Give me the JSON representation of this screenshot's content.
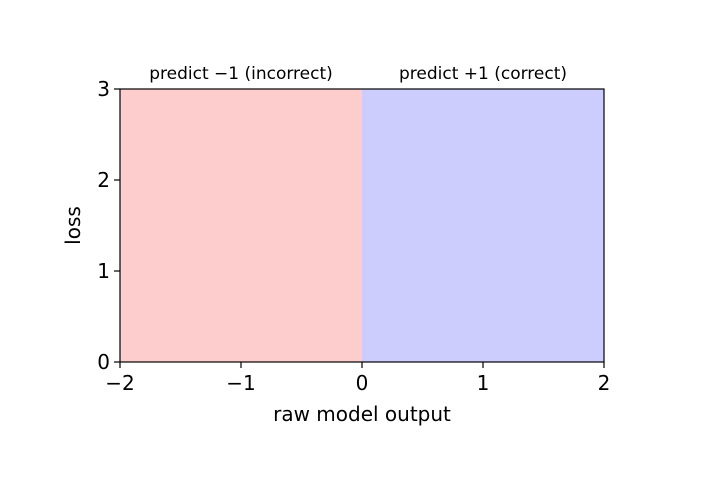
{
  "chart_data": {
    "type": "area",
    "xlabel": "raw model output",
    "ylabel": "loss",
    "xlim": [
      -2,
      2
    ],
    "ylim": [
      0,
      3
    ],
    "xticks": [
      -2,
      -1,
      0,
      1,
      2
    ],
    "xtick_labels": [
      "−2",
      "−1",
      "0",
      "1",
      "2"
    ],
    "yticks": [
      0,
      1,
      2,
      3
    ],
    "ytick_labels": [
      "0",
      "1",
      "2",
      "3"
    ],
    "grid": false,
    "regions": [
      {
        "label": "predict −1 (incorrect)",
        "x": [
          -2,
          0
        ],
        "color": "#fdcccc"
      },
      {
        "label": "predict +1 (correct)",
        "x": [
          0,
          2
        ],
        "color": "#ccccfd"
      }
    ]
  }
}
